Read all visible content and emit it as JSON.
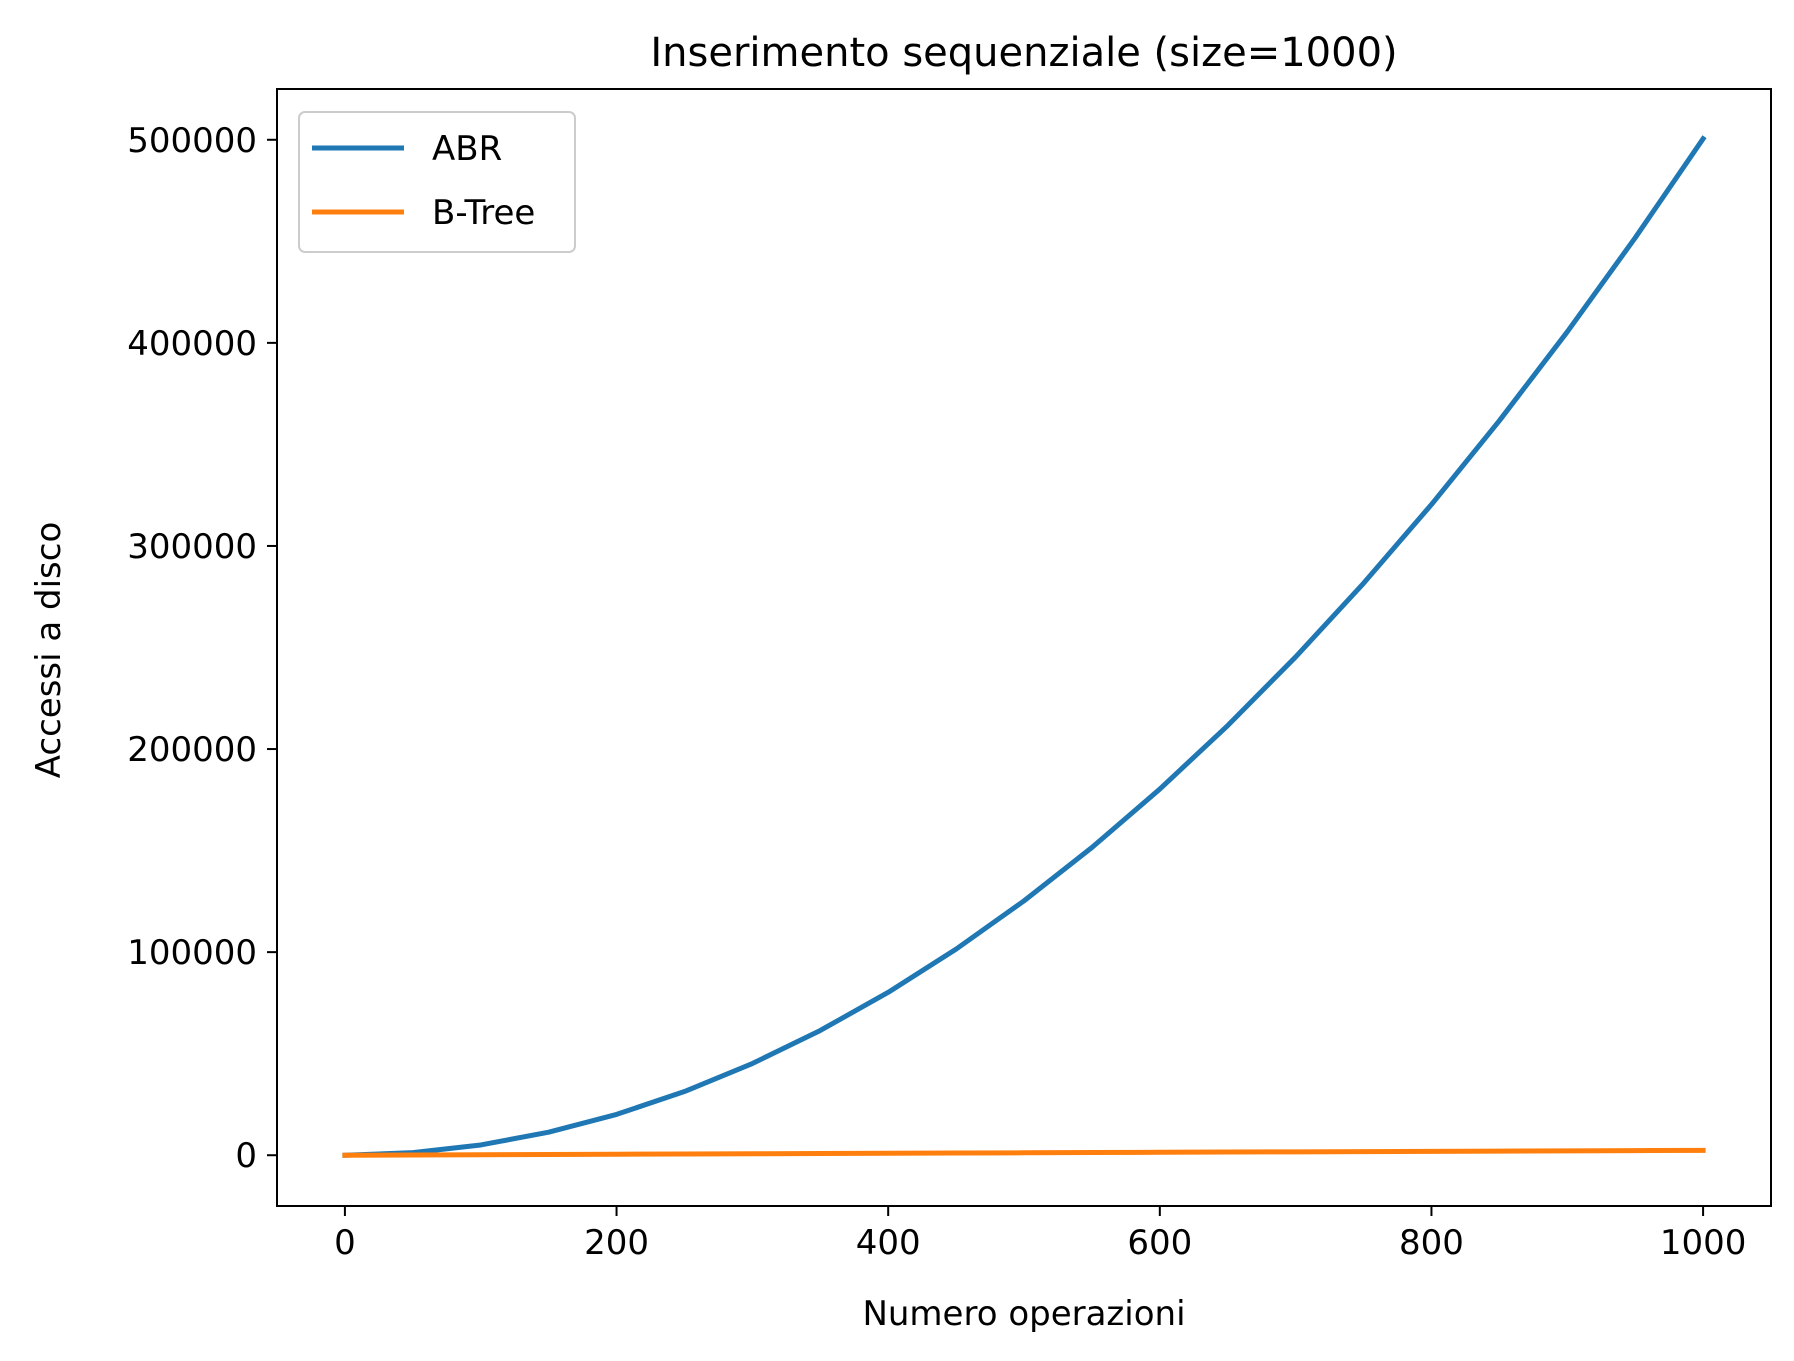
{
  "chart_data": {
    "type": "line",
    "title": "Inserimento sequenziale (size=1000)",
    "xlabel": "Numero operazioni",
    "ylabel": "Accessi a disco",
    "xlim": [
      -50,
      1050
    ],
    "ylim": [
      -25000,
      525000
    ],
    "xticks": [
      0,
      200,
      400,
      600,
      800,
      1000
    ],
    "xtick_labels": [
      "0",
      "200",
      "400",
      "600",
      "800",
      "1000"
    ],
    "yticks": [
      0,
      100000,
      200000,
      300000,
      400000,
      500000
    ],
    "ytick_labels": [
      "0",
      "100000",
      "200000",
      "300000",
      "400000",
      "500000"
    ],
    "grid": false,
    "legend_position": "top-left",
    "x": [
      0,
      50,
      100,
      150,
      200,
      250,
      300,
      350,
      400,
      450,
      500,
      550,
      600,
      650,
      700,
      750,
      800,
      850,
      900,
      950,
      1000
    ],
    "series": [
      {
        "name": "ABR",
        "color": "#1f77b4",
        "values": [
          0,
          1275,
          5050,
          11325,
          20100,
          31375,
          45150,
          61425,
          80200,
          101475,
          125250,
          151525,
          180300,
          211575,
          245350,
          281625,
          320400,
          361675,
          405450,
          451725,
          500500
        ]
      },
      {
        "name": "B-Tree",
        "color": "#ff7f0e",
        "values": [
          0,
          110,
          230,
          360,
          480,
          600,
          720,
          840,
          960,
          1080,
          1200,
          1320,
          1440,
          1560,
          1680,
          1800,
          1920,
          2040,
          2160,
          2280,
          2400
        ]
      }
    ]
  }
}
